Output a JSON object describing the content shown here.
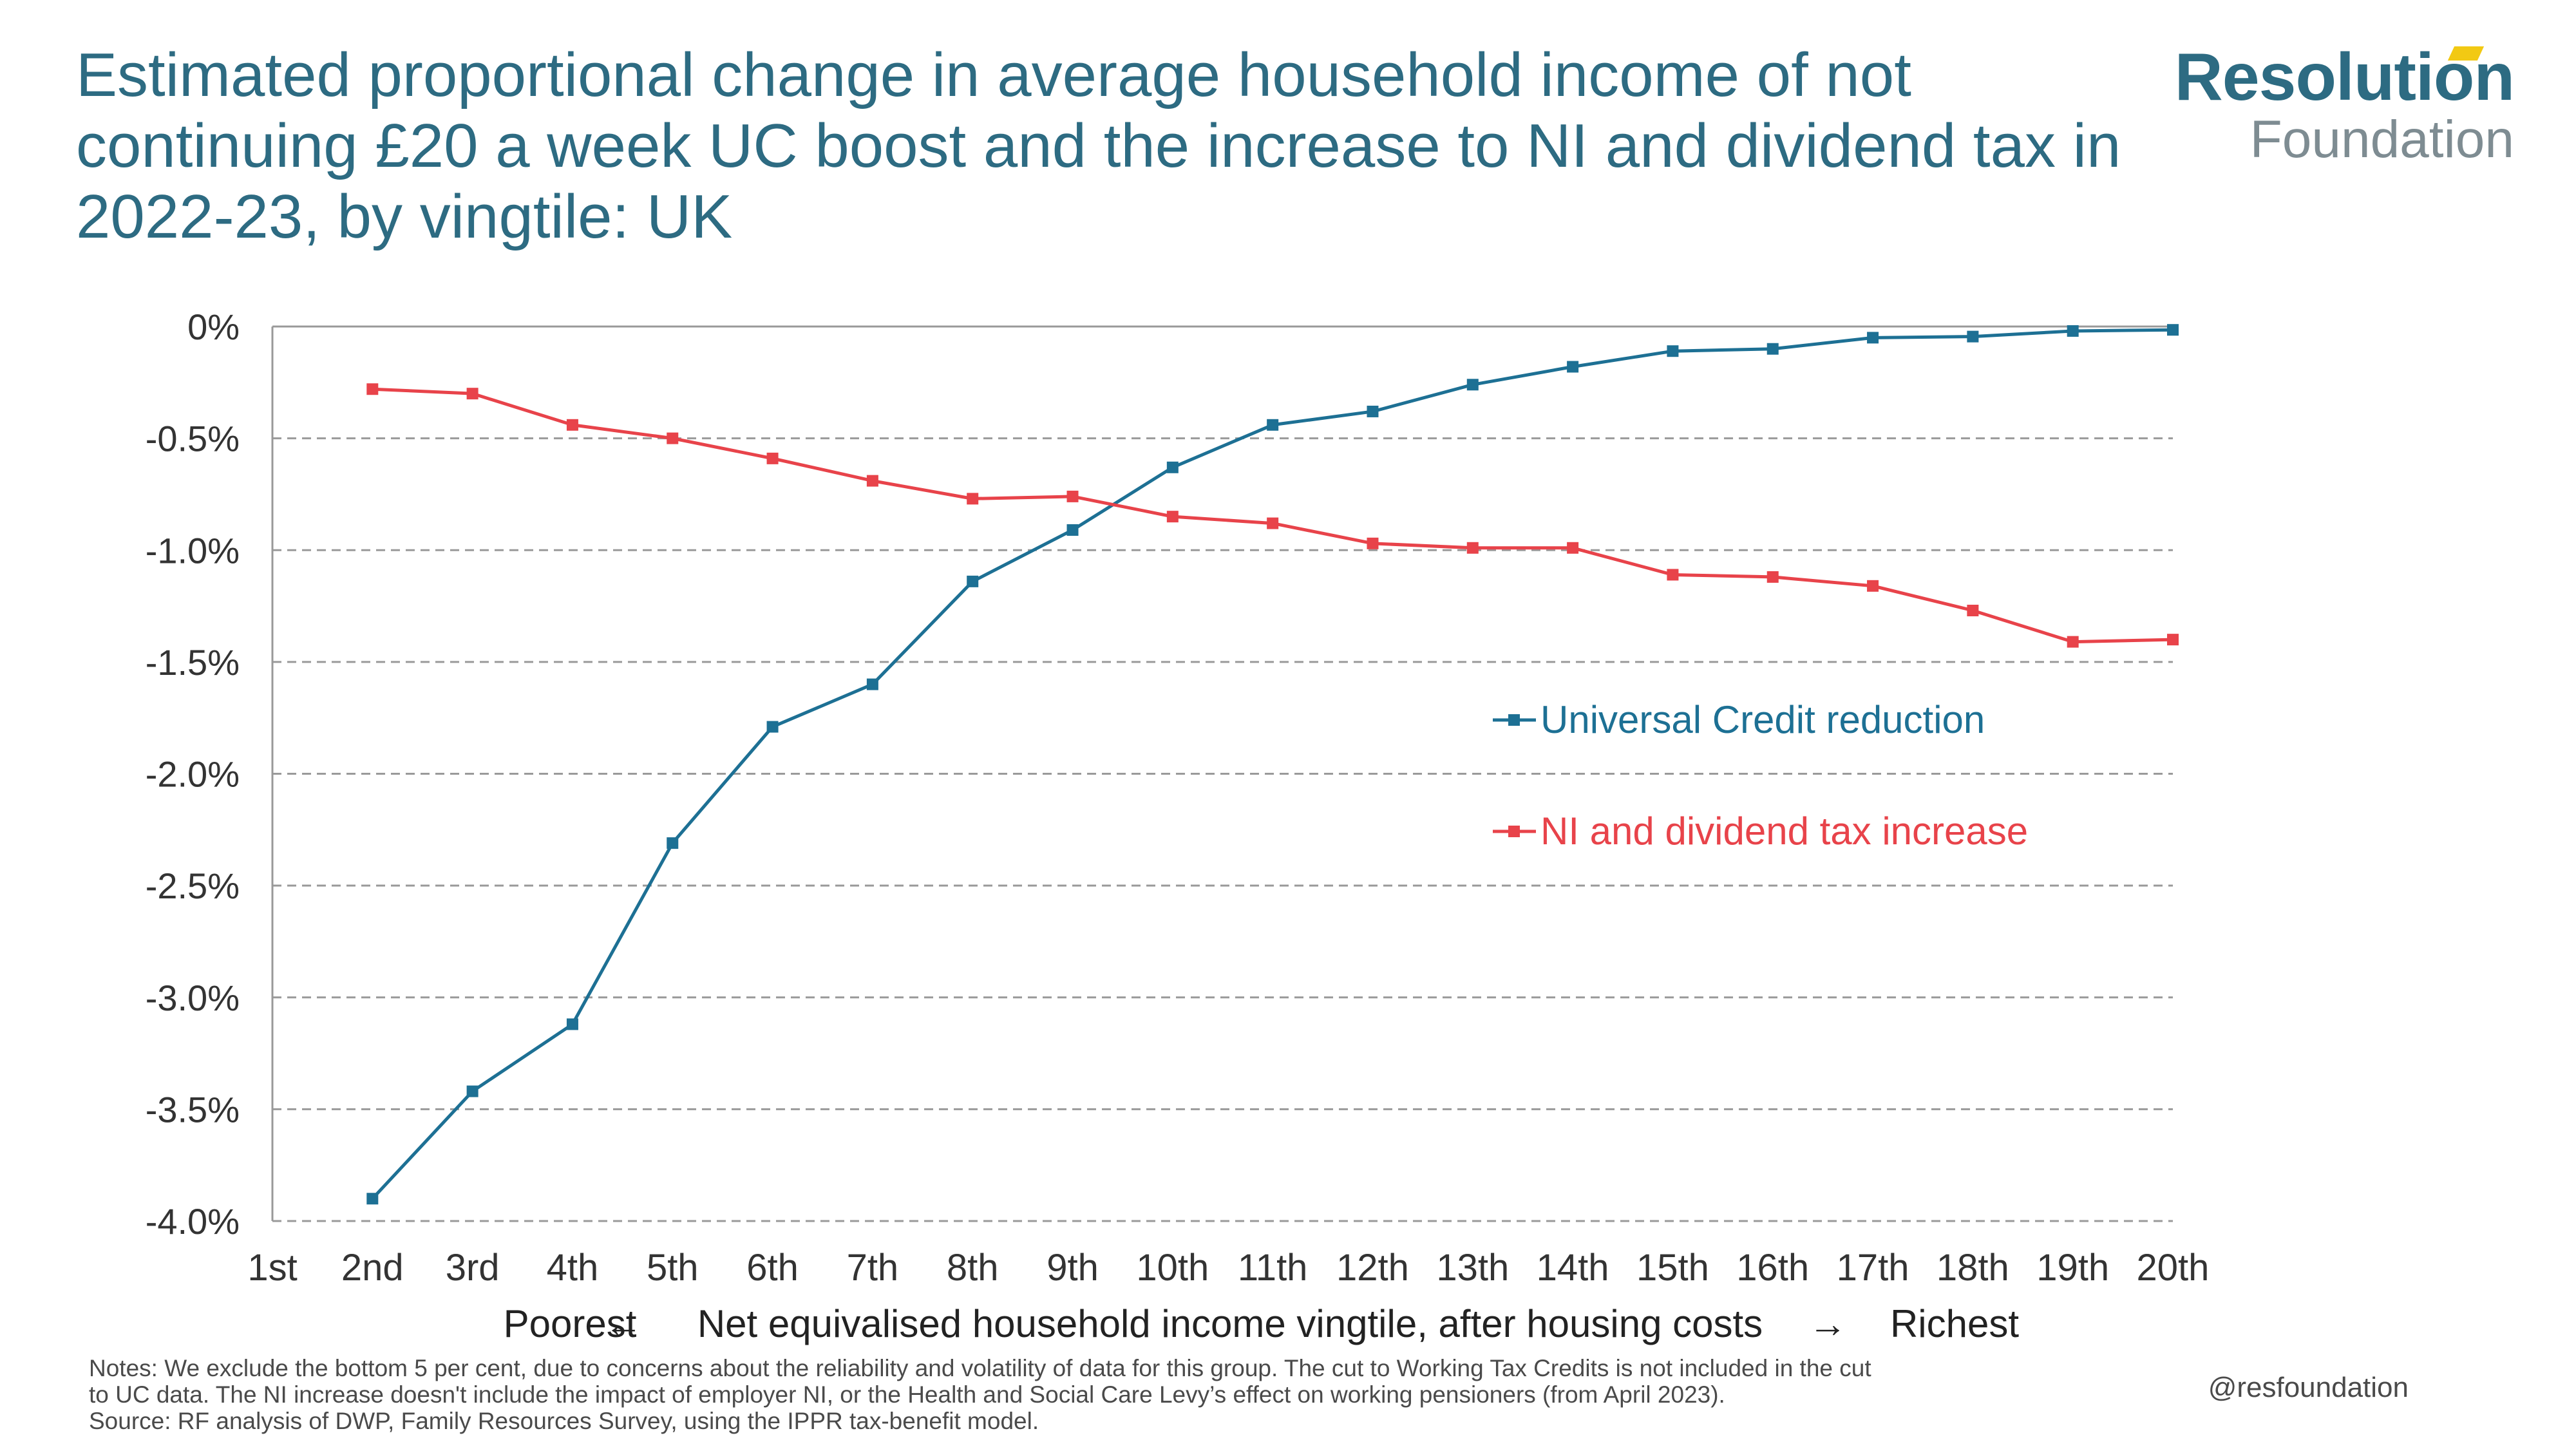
{
  "title": "Estimated proportional change in average household income of not continuing £20 a week UC boost and the increase to NI and dividend tax in 2022-23, by vingtile: UK",
  "logo": {
    "main": "Resolution",
    "sub": "Foundation",
    "accent_color": "#f2c913",
    "main_color": "#2d6b82"
  },
  "notes": {
    "line1": "Notes: We exclude the bottom 5 per cent, due to concerns about the reliability and volatility of data for this group. The cut to Working Tax Credits is not included in the cut",
    "line2": "to UC data. The NI increase doesn't include the impact of employer NI, or the Health and Social Care Levy’s effect on working pensioners (from April 2023).",
    "line3": "Source: RF analysis of DWP, Family Resources Survey, using the IPPR tax-benefit model."
  },
  "handle": "@resfoundation",
  "chart_data": {
    "type": "line",
    "title": "Estimated proportional change in average household income of not continuing £20 a week UC boost and the increase to NI and dividend tax in 2022-23, by vingtile: UK",
    "xlabel": "Net equivalised household income vingtile, after housing costs",
    "xlabel_left": "Poorest",
    "xlabel_right": "Richest",
    "arrow_left": "←",
    "arrow_right": "→",
    "ylabel": "",
    "categories": [
      "1st",
      "2nd",
      "3rd",
      "4th",
      "5th",
      "6th",
      "7th",
      "8th",
      "9th",
      "10th",
      "11th",
      "12th",
      "13th",
      "14th",
      "15th",
      "16th",
      "17th",
      "18th",
      "19th",
      "20th"
    ],
    "ylim": [
      -4.0,
      0
    ],
    "yticks": [
      0,
      -0.5,
      -1.0,
      -1.5,
      -2.0,
      -2.5,
      -3.0,
      -3.5,
      -4.0
    ],
    "ytick_labels": [
      "0%",
      "-0.5%",
      "-1.0%",
      "-1.5%",
      "-2.0%",
      "-2.5%",
      "-3.0%",
      "-3.5%",
      "-4.0%"
    ],
    "grid": "horizontal dashed",
    "legend_position": "right-middle",
    "series": [
      {
        "name": "Universal Credit reduction",
        "color": "#1d7094",
        "values": [
          null,
          -3.9,
          -3.42,
          -3.12,
          -2.31,
          -1.79,
          -1.6,
          -1.14,
          -0.91,
          -0.63,
          -0.44,
          -0.38,
          -0.26,
          -0.18,
          -0.11,
          -0.1,
          -0.05,
          -0.045,
          -0.02,
          -0.015
        ]
      },
      {
        "name": "NI and dividend tax increase",
        "color": "#e8434a",
        "values": [
          null,
          -0.28,
          -0.3,
          -0.44,
          -0.5,
          -0.59,
          -0.69,
          -0.77,
          -0.76,
          -0.85,
          -0.88,
          -0.97,
          -0.99,
          -0.99,
          -1.11,
          -1.12,
          -1.16,
          -1.27,
          -1.41,
          -1.4
        ]
      }
    ]
  }
}
